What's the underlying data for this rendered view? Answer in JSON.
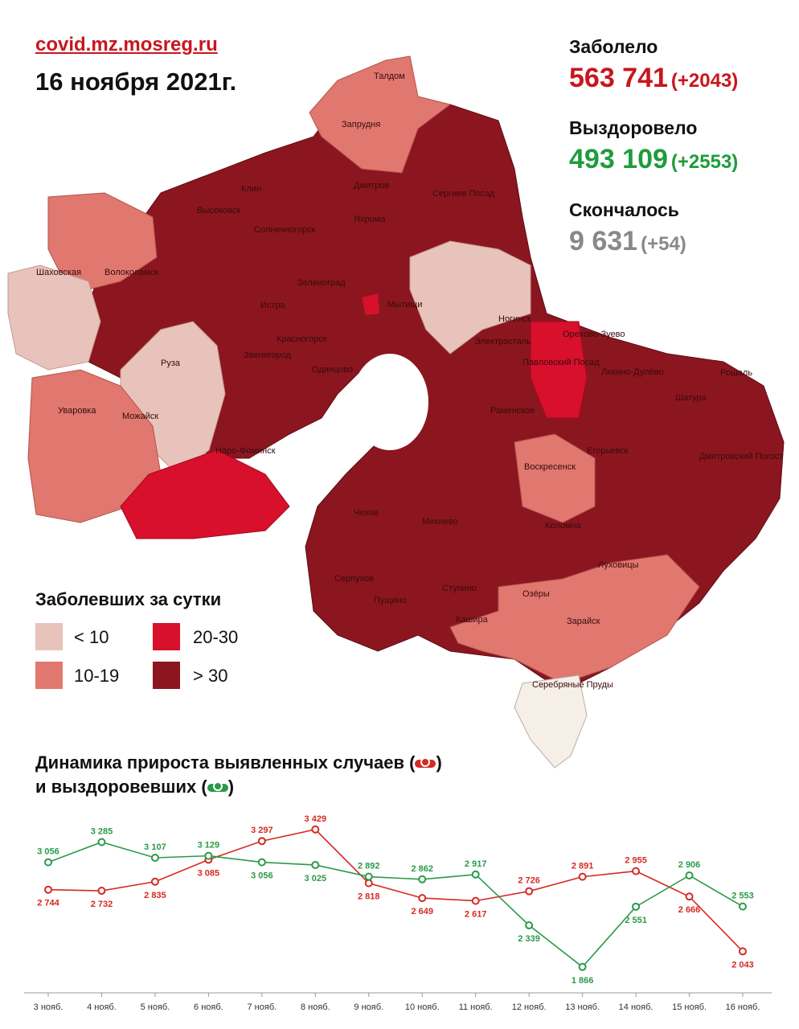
{
  "header": {
    "site": "covid.mz.mosreg.ru",
    "date": "16 ноября 2021г."
  },
  "stats": {
    "infected": {
      "label": "Заболело",
      "value": "563 741",
      "delta": "(+2043)",
      "color": "#c8161d"
    },
    "recovered": {
      "label": "Выздоровело",
      "value": "493 109",
      "delta": "(+2553)",
      "color": "#1e9c3c"
    },
    "deaths": {
      "label": "Скончалось",
      "value": "9 631",
      "delta": "(+54)",
      "color": "#888888"
    }
  },
  "map": {
    "cities": [
      "Талдом",
      "Запрудня",
      "Клин",
      "Дмитров",
      "Сергиев Посад",
      "Высоковск",
      "Яхрома",
      "Солнечногорск",
      "Шаховская",
      "Волоколамск",
      "Зеленоград",
      "Мытищи",
      "Истра",
      "Ногинск",
      "Орехово-Зуево",
      "Красногорск",
      "Звенигород",
      "Электросталь",
      "Павловский Посад",
      "Ликино-Дулёво",
      "Рошаль",
      "Руза",
      "Одинцово",
      "Раменское",
      "Шатура",
      "Уваровка",
      "Можайск",
      "Наро-Фоминск",
      "Егорьевск",
      "Воскресенск",
      "Дмитровский Погост",
      "Чехов",
      "Михнево",
      "Коломна",
      "Серпухов",
      "Луховицы",
      "Ступино",
      "Озёры",
      "Пущино",
      "Кашира",
      "Зарайск",
      "Серебряные Пруды"
    ]
  },
  "legend": {
    "title": "Заболевших за сутки",
    "items": [
      {
        "label": "< 10",
        "color": "#e8c3bb"
      },
      {
        "label": "10-19",
        "color": "#e0786f"
      },
      {
        "label": "20-30",
        "color": "#d8102c"
      },
      {
        "label": "> 30",
        "color": "#8b1620"
      }
    ]
  },
  "dynamics": {
    "title_line1": "Динамика прироста выявленных случаев (",
    "title_line1_end": ")",
    "title_line2": "и выздоровевших (",
    "title_line2_end": ")"
  },
  "chart_data": {
    "type": "line",
    "categories": [
      "3 нояб.",
      "4 нояб.",
      "5 нояб.",
      "6 нояб.",
      "7 нояб.",
      "8 нояб.",
      "9 нояб.",
      "10 нояб.",
      "11 нояб.",
      "12 нояб.",
      "13 нояб.",
      "14 нояб.",
      "15 нояб.",
      "16 нояб."
    ],
    "series": [
      {
        "key": "cases",
        "color": "#d42a22",
        "values": [
          2744,
          2732,
          2835,
          3085,
          3297,
          3429,
          2818,
          2649,
          2617,
          2726,
          2891,
          2955,
          2666,
          2043
        ],
        "labels": [
          "2 744",
          "2 732",
          "2 835",
          "3 085",
          "3 297",
          "3 429",
          "2 818",
          "2 649",
          "2 617",
          "2 726",
          "2 891",
          "2 955",
          "2 666",
          "2 043"
        ]
      },
      {
        "key": "recovered",
        "color": "#2a9a4a",
        "values": [
          3056,
          3285,
          3107,
          3129,
          3056,
          3025,
          2892,
          2862,
          2917,
          2339,
          1866,
          2551,
          2906,
          2553
        ],
        "labels": [
          "3 056",
          "3 285",
          "3 107",
          "3 129",
          "3 056",
          "3 025",
          "2 892",
          "2 862",
          "2 917",
          "2 339",
          "1 866",
          "2 551",
          "2 906",
          "2 553"
        ]
      }
    ],
    "ylim": [
      1800,
      3500
    ],
    "grid": false
  }
}
